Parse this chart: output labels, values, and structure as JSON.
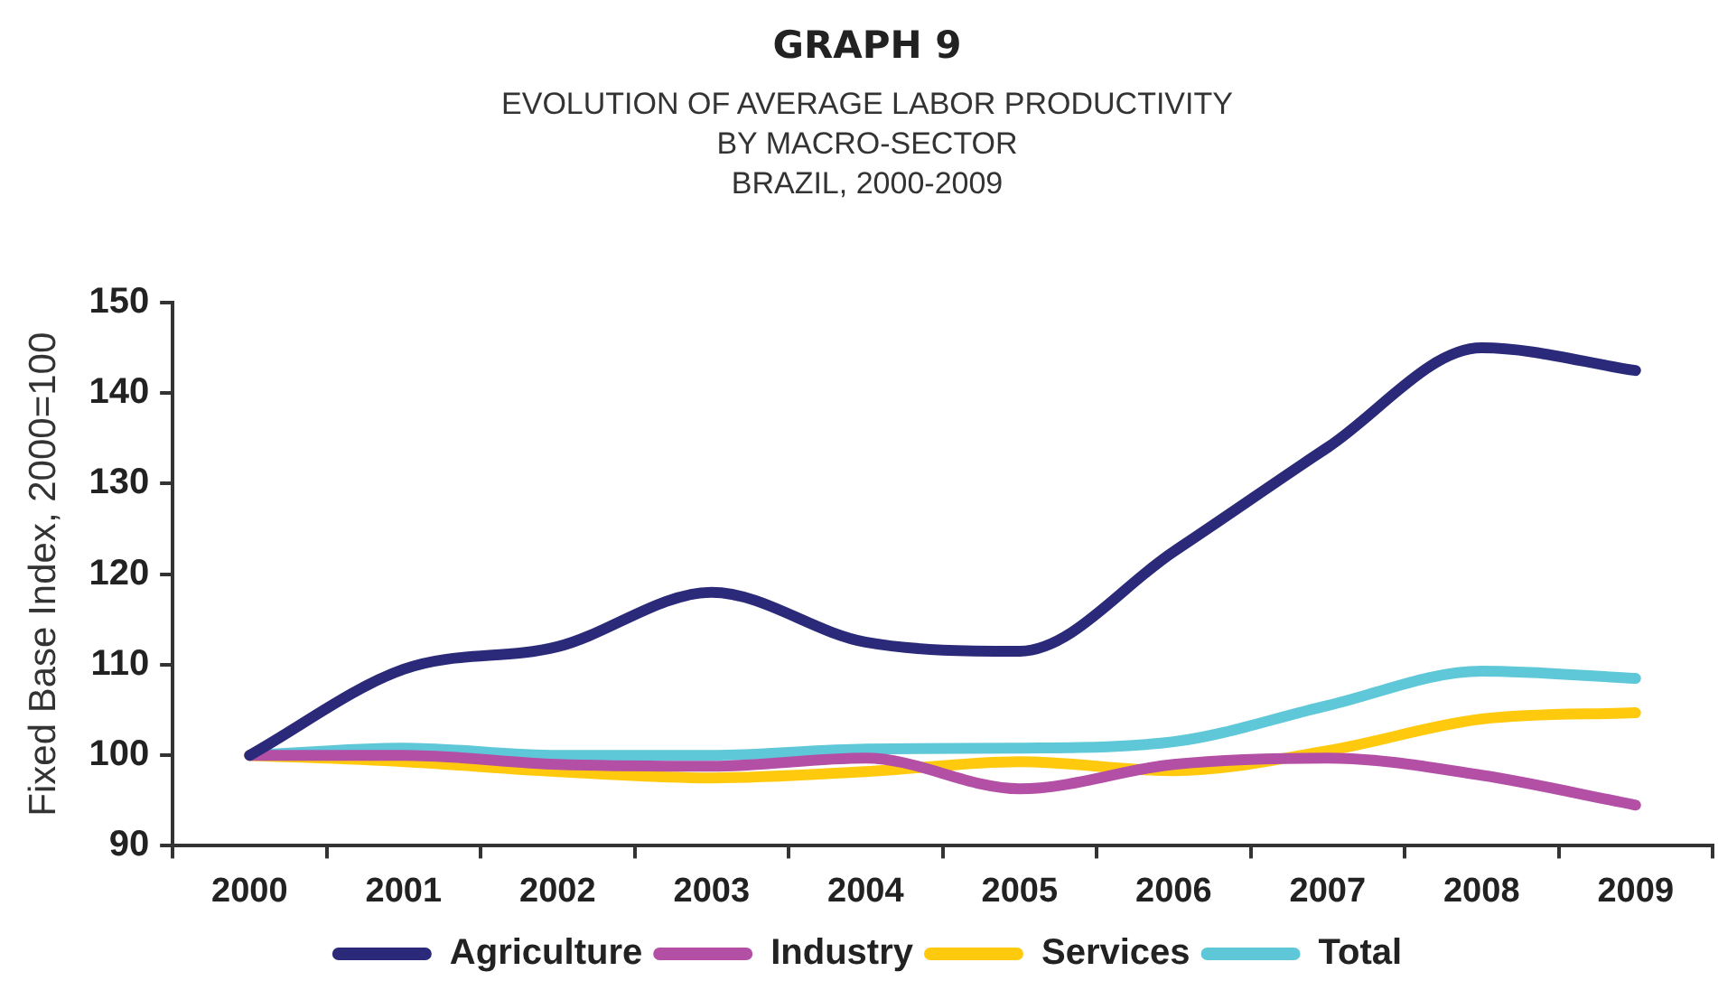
{
  "chart_data": {
    "type": "line",
    "title": "GRAPH 9",
    "subtitle": "EVOLUTION OF AVERAGE LABOR PRODUCTIVITY\nBY MACRO-SECTOR\nBRAZIL, 2000-2009",
    "ylabel": "Fixed Base Index, 2000=100",
    "categories": [
      "2000",
      "2001",
      "2002",
      "2003",
      "2004",
      "2005",
      "2006",
      "2007",
      "2008",
      "2009"
    ],
    "series": [
      {
        "name": "Agriculture",
        "color": "#2b2a7a",
        "values": [
          100,
          109.5,
          112,
          118,
          112.5,
          111.5,
          122.5,
          134,
          145,
          142.5
        ]
      },
      {
        "name": "Industry",
        "color": "#b44fa6",
        "values": [
          100,
          100,
          99,
          98.8,
          99.7,
          96.3,
          99,
          99.7,
          97.8,
          94.5
        ]
      },
      {
        "name": "Services",
        "color": "#ffc90e",
        "values": [
          100,
          99.3,
          98.2,
          97.5,
          98.2,
          99.3,
          98.3,
          100.5,
          104,
          104.7
        ]
      },
      {
        "name": "Total",
        "color": "#5ec8d8",
        "values": [
          100,
          100.8,
          100,
          100,
          100.7,
          100.8,
          101.5,
          105.5,
          109.3,
          108.5
        ]
      }
    ],
    "ylim": [
      90,
      150
    ],
    "yticks": [
      90,
      100,
      110,
      120,
      130,
      140,
      150
    ],
    "legend": "bottom"
  }
}
